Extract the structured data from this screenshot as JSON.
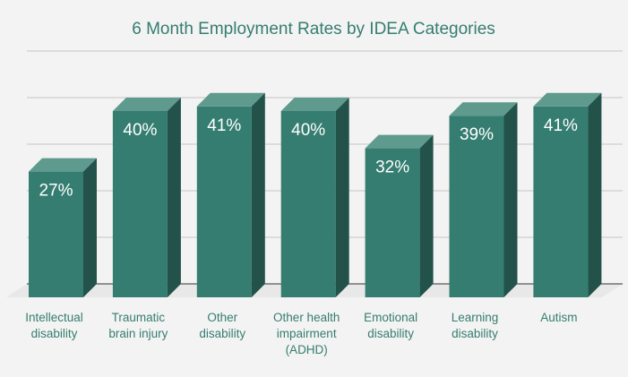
{
  "chart_data": {
    "type": "bar",
    "title": "6 Month Employment Rates by IDEA Categories",
    "categories": [
      [
        "Intellectual",
        "disability"
      ],
      [
        "Traumatic",
        "brain injury"
      ],
      [
        "Other",
        "disability"
      ],
      [
        "Other health",
        "impairment",
        "(ADHD)"
      ],
      [
        "Emotional",
        "disability"
      ],
      [
        "Learning",
        "disability"
      ],
      [
        "Autism"
      ]
    ],
    "values": [
      27,
      40,
      41,
      40,
      32,
      39,
      41
    ],
    "data_labels": [
      "27%",
      "40%",
      "41%",
      "40%",
      "32%",
      "39%",
      "41%"
    ],
    "ylim": [
      0,
      50
    ],
    "ytick_step": 10,
    "grid": true,
    "xlabel": "",
    "ylabel": "",
    "colors": {
      "front": "#357d70",
      "top": "#5f9a8e",
      "side": "#22524a",
      "title": "#357d70",
      "label": "#357d70"
    }
  }
}
